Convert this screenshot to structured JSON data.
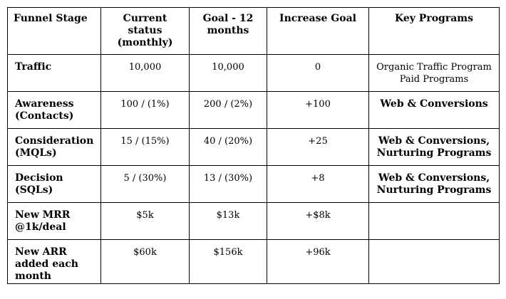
{
  "table": {
    "headers": [
      [
        "Funnel Stage"
      ],
      [
        "Current",
        "status",
        "(monthly)"
      ],
      [
        "Goal - 12",
        "months"
      ],
      [
        "Increase Goal"
      ],
      [
        "Key Programs"
      ]
    ],
    "rows": [
      {
        "stage": [
          "Traffic"
        ],
        "current": "10,000",
        "goal": "10,000",
        "increase": "0",
        "programs": [
          "Organic Traffic Program",
          "Paid Programs"
        ],
        "programs_bold": false
      },
      {
        "stage": [
          "Awareness",
          "(Contacts)"
        ],
        "current": "100 / (1%)",
        "goal": "200 / (2%)",
        "increase": "+100",
        "programs": [
          "Web & Conversions"
        ],
        "programs_bold": true
      },
      {
        "stage": [
          "Consideration",
          "(MQLs)"
        ],
        "current": "15 / (15%)",
        "goal": "40 / (20%)",
        "increase": "+25",
        "programs": [
          "Web & Conversions,",
          "Nurturing Programs"
        ],
        "programs_bold": true
      },
      {
        "stage": [
          "Decision",
          "(SQLs)"
        ],
        "current": "5 / (30%)",
        "goal": "13 / (30%)",
        "increase": "+8",
        "programs": [
          "Web & Conversions,",
          "Nurturing Programs"
        ],
        "programs_bold": true
      },
      {
        "stage": [
          "New MRR",
          "@1k/deal"
        ],
        "current": "$5k",
        "goal": "$13k",
        "increase": "+$8k",
        "programs": [],
        "programs_bold": false
      },
      {
        "stage": [
          "New ARR",
          "added each",
          "month"
        ],
        "current": "$60k",
        "goal": "$156k",
        "increase": "+96k",
        "programs": [],
        "programs_bold": false
      }
    ]
  }
}
